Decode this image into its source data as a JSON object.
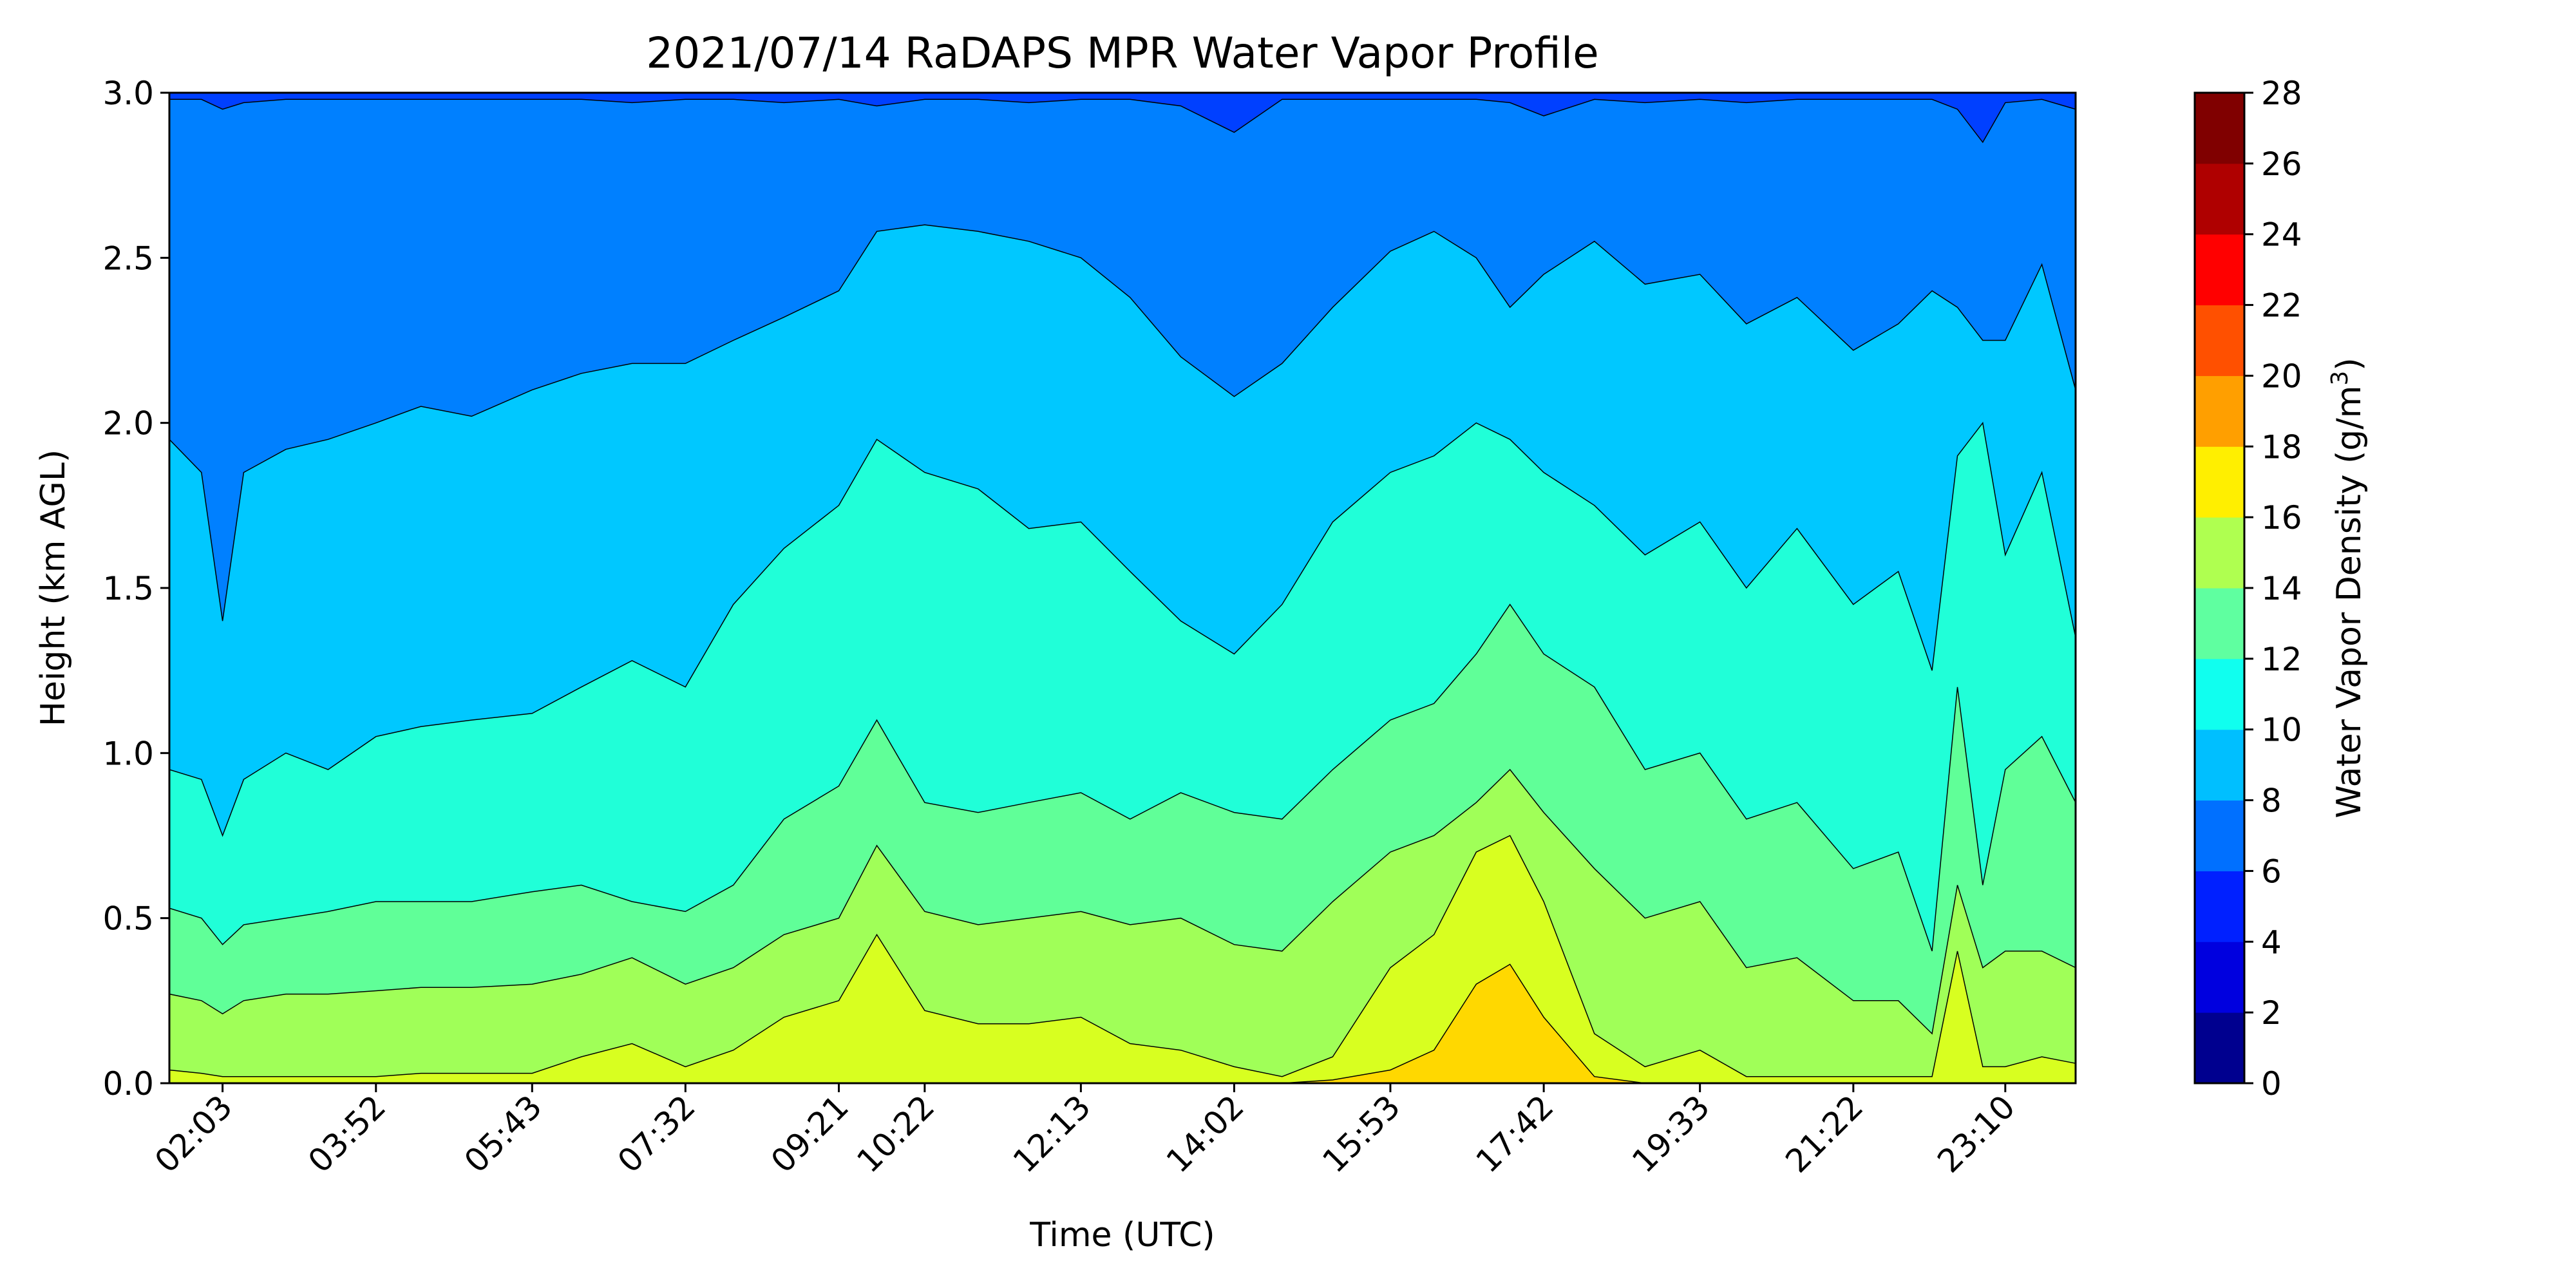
{
  "chart_data": {
    "type": "contour",
    "title": "2021/07/14 RaDAPS MPR Water Vapor Profile",
    "xlabel": "Time (UTC)",
    "ylabel": "Height (km AGL)",
    "colorbar_label": "Water Vapor Density (g/m³)",
    "colorbar_label_base": "Water Vapor Density (g/m",
    "colorbar_label_sup": "3",
    "colorbar_label_end": ")",
    "ylim": [
      0.0,
      3.0
    ],
    "x_range": [
      1.42,
      24.0
    ],
    "x_ticks": [
      {
        "hours": 2.05,
        "label": "02:03"
      },
      {
        "hours": 3.867,
        "label": "03:52"
      },
      {
        "hours": 5.717,
        "label": "05:43"
      },
      {
        "hours": 7.533,
        "label": "07:32"
      },
      {
        "hours": 9.35,
        "label": "09:21"
      },
      {
        "hours": 10.367,
        "label": "10:22"
      },
      {
        "hours": 12.217,
        "label": "12:13"
      },
      {
        "hours": 14.033,
        "label": "14:02"
      },
      {
        "hours": 15.883,
        "label": "15:53"
      },
      {
        "hours": 17.7,
        "label": "17:42"
      },
      {
        "hours": 19.55,
        "label": "19:33"
      },
      {
        "hours": 21.367,
        "label": "21:22"
      },
      {
        "hours": 23.167,
        "label": "23:10"
      }
    ],
    "y_ticks": [
      "0.0",
      "0.5",
      "1.0",
      "1.5",
      "2.0",
      "2.5",
      "3.0"
    ],
    "levels": [
      "0",
      "2",
      "4",
      "6",
      "8",
      "10",
      "12",
      "14",
      "16",
      "18",
      "20",
      "22",
      "24",
      "26",
      "28"
    ],
    "level_colors": [
      "#00008f",
      "#0000df",
      "#0020ff",
      "#0070ff",
      "#00bfff",
      "#10ffef",
      "#5fffa0",
      "#afff50",
      "#ffef00",
      "#ff9f00",
      "#ff5000",
      "#ff0000",
      "#af0000",
      "#800000"
    ],
    "band_colors": {
      "4-6": "#0040ff",
      "6-8": "#0080ff",
      "8-10": "#00c8ff",
      "10-12": "#20ffd8",
      "12-14": "#60ff98",
      "14-16": "#a0ff58",
      "16-18": "#d8ff20",
      "18-20": "#ffd800"
    },
    "contour_heights_km": {
      "x_hours": [
        1.42,
        1.8,
        2.05,
        2.3,
        2.8,
        3.3,
        3.867,
        4.4,
        5.0,
        5.717,
        6.3,
        6.9,
        7.533,
        8.1,
        8.7,
        9.35,
        9.8,
        10.367,
        11.0,
        11.6,
        12.217,
        12.8,
        13.4,
        14.033,
        14.6,
        15.2,
        15.883,
        16.4,
        16.9,
        17.3,
        17.7,
        18.3,
        18.9,
        19.55,
        20.1,
        20.7,
        21.367,
        21.9,
        22.3,
        22.6,
        22.9,
        23.167,
        23.6,
        24.0
      ],
      "c6": [
        2.98,
        2.98,
        2.95,
        2.97,
        2.98,
        2.98,
        2.98,
        2.98,
        2.98,
        2.98,
        2.98,
        2.97,
        2.98,
        2.98,
        2.97,
        2.98,
        2.96,
        2.98,
        2.98,
        2.97,
        2.98,
        2.98,
        2.96,
        2.88,
        2.98,
        2.98,
        2.98,
        2.98,
        2.98,
        2.97,
        2.93,
        2.98,
        2.97,
        2.98,
        2.97,
        2.98,
        2.98,
        2.98,
        2.98,
        2.95,
        2.85,
        2.97,
        2.98,
        2.95
      ],
      "c8": [
        1.95,
        1.85,
        1.4,
        1.85,
        1.92,
        1.95,
        2.0,
        2.05,
        2.02,
        2.1,
        2.15,
        2.18,
        2.18,
        2.25,
        2.32,
        2.4,
        2.58,
        2.6,
        2.58,
        2.55,
        2.5,
        2.38,
        2.2,
        2.08,
        2.18,
        2.35,
        2.52,
        2.58,
        2.5,
        2.35,
        2.45,
        2.55,
        2.42,
        2.45,
        2.3,
        2.38,
        2.22,
        2.3,
        2.4,
        2.35,
        2.25,
        2.25,
        2.48,
        2.1
      ],
      "c10": [
        0.95,
        0.92,
        0.75,
        0.92,
        1.0,
        0.95,
        1.05,
        1.08,
        1.1,
        1.12,
        1.2,
        1.28,
        1.2,
        1.45,
        1.62,
        1.75,
        1.95,
        1.85,
        1.8,
        1.68,
        1.7,
        1.55,
        1.4,
        1.3,
        1.45,
        1.7,
        1.85,
        1.9,
        2.0,
        1.95,
        1.85,
        1.75,
        1.6,
        1.7,
        1.5,
        1.68,
        1.45,
        1.55,
        1.25,
        1.9,
        2.0,
        1.6,
        1.85,
        1.35
      ],
      "c12": [
        0.53,
        0.5,
        0.42,
        0.48,
        0.5,
        0.52,
        0.55,
        0.55,
        0.55,
        0.58,
        0.6,
        0.55,
        0.52,
        0.6,
        0.8,
        0.9,
        1.1,
        0.85,
        0.82,
        0.85,
        0.88,
        0.8,
        0.88,
        0.82,
        0.8,
        0.95,
        1.1,
        1.15,
        1.3,
        1.45,
        1.3,
        1.2,
        0.95,
        1.0,
        0.8,
        0.85,
        0.65,
        0.7,
        0.4,
        1.2,
        0.6,
        0.95,
        1.05,
        0.85
      ],
      "c14": [
        0.27,
        0.25,
        0.21,
        0.25,
        0.27,
        0.27,
        0.28,
        0.29,
        0.29,
        0.3,
        0.33,
        0.38,
        0.3,
        0.35,
        0.45,
        0.5,
        0.72,
        0.52,
        0.48,
        0.5,
        0.52,
        0.48,
        0.5,
        0.42,
        0.4,
        0.55,
        0.7,
        0.75,
        0.85,
        0.95,
        0.82,
        0.65,
        0.5,
        0.55,
        0.35,
        0.38,
        0.25,
        0.25,
        0.15,
        0.6,
        0.35,
        0.4,
        0.4,
        0.35
      ],
      "c16": [
        0.04,
        0.03,
        0.02,
        0.02,
        0.02,
        0.02,
        0.02,
        0.03,
        0.03,
        0.03,
        0.08,
        0.12,
        0.05,
        0.1,
        0.2,
        0.25,
        0.45,
        0.22,
        0.18,
        0.18,
        0.2,
        0.12,
        0.1,
        0.05,
        0.02,
        0.08,
        0.35,
        0.45,
        0.7,
        0.75,
        0.55,
        0.15,
        0.05,
        0.1,
        0.02,
        0.02,
        0.02,
        0.02,
        0.02,
        0.4,
        0.05,
        0.05,
        0.08,
        0.06
      ],
      "c18": [
        0.0,
        0.0,
        0.0,
        0.0,
        0.0,
        0.0,
        0.0,
        0.0,
        0.0,
        0.0,
        0.0,
        0.0,
        0.0,
        0.0,
        0.0,
        0.0,
        0.0,
        0.0,
        0.0,
        0.0,
        0.0,
        0.0,
        0.0,
        0.0,
        0.0,
        0.01,
        0.04,
        0.1,
        0.3,
        0.36,
        0.2,
        0.02,
        0.0,
        0.0,
        0.0,
        0.0,
        0.0,
        0.0,
        0.0,
        0.0,
        0.0,
        0.0,
        0.0,
        0.0
      ]
    }
  }
}
